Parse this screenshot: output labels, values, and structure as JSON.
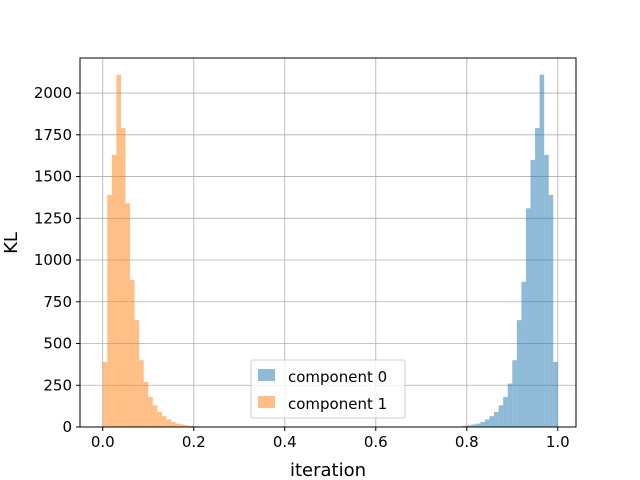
{
  "chart_data": {
    "type": "histogram",
    "title": "",
    "xlabel": "iteration",
    "ylabel": "KL",
    "xlim": [
      -0.05,
      1.04
    ],
    "ylim": [
      0,
      2210
    ],
    "xticks": [
      0.0,
      0.2,
      0.4,
      0.6,
      0.8,
      1.0
    ],
    "xtick_labels": [
      "0.0",
      "0.2",
      "0.4",
      "0.6",
      "0.8",
      "1.0"
    ],
    "yticks": [
      0,
      250,
      500,
      750,
      1000,
      1250,
      1500,
      1750,
      2000
    ],
    "ytick_labels": [
      "0",
      "250",
      "500",
      "750",
      "1000",
      "1250",
      "1500",
      "1750",
      "2000"
    ],
    "grid": true,
    "legend_position": "lower center",
    "bin_width": 0.01,
    "series": [
      {
        "name": "component 0",
        "color": "#1f77b4",
        "alpha": 0.5,
        "bin_starts": [
          0.77,
          0.78,
          0.79,
          0.8,
          0.81,
          0.82,
          0.83,
          0.84,
          0.85,
          0.86,
          0.87,
          0.88,
          0.89,
          0.9,
          0.91,
          0.92,
          0.93,
          0.94,
          0.95,
          0.96,
          0.97,
          0.98,
          0.99
        ],
        "values": [
          2,
          3,
          6,
          10,
          15,
          20,
          30,
          45,
          65,
          90,
          130,
          180,
          260,
          400,
          640,
          870,
          1310,
          1600,
          1790,
          2110,
          1630,
          1390,
          390
        ]
      },
      {
        "name": "component 1",
        "color": "#ff7f0e",
        "alpha": 0.5,
        "bin_starts": [
          0.0,
          0.01,
          0.02,
          0.03,
          0.04,
          0.05,
          0.06,
          0.07,
          0.08,
          0.09,
          0.1,
          0.11,
          0.12,
          0.13,
          0.14,
          0.15,
          0.16,
          0.17,
          0.18,
          0.19,
          0.2,
          0.21,
          0.22
        ],
        "values": [
          390,
          1390,
          1630,
          2110,
          1790,
          1340,
          880,
          640,
          400,
          270,
          180,
          130,
          90,
          65,
          45,
          30,
          20,
          15,
          10,
          6,
          4,
          3,
          2
        ]
      }
    ]
  }
}
